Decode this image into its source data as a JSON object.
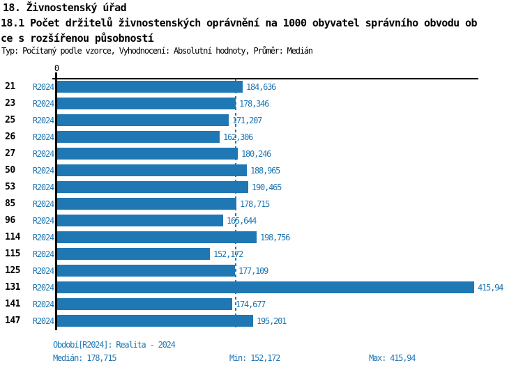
{
  "header": {
    "title": "18. Živnostenský úřad",
    "subtitle_line1": "18.1 Počet držitelů živnostenských oprávnění na 1000 obyvatel správního obvodu ob",
    "subtitle_line2": "ce s rozšířenou působností",
    "meta": "Typ: Počítaný podle vzorce, Vyhodnocení: Absolutní hodnoty, Průměr: Medián"
  },
  "chart_data": {
    "type": "bar",
    "orientation": "horizontal",
    "title": "Počet držitelů živnostenských oprávnění na 1000 obyvatel správního obvodu obce s rozšířenou působností",
    "xlabel": "",
    "ylabel": "",
    "axis": {
      "zero_label": "0",
      "x_min": 0,
      "x_max": 420.7,
      "grid": false
    },
    "median_value": 178.715,
    "period_label": "R2024",
    "categories": [
      "21",
      "23",
      "25",
      "26",
      "27",
      "50",
      "53",
      "85",
      "96",
      "114",
      "115",
      "125",
      "131",
      "141",
      "147"
    ],
    "series": [
      {
        "name": "R2024 (Realita - 2024)",
        "values": [
          184.636,
          178.346,
          171.207,
          162.306,
          180.246,
          188.965,
          190.465,
          178.715,
          165.644,
          198.756,
          152.172,
          177.109,
          415.94,
          174.677,
          195.201
        ]
      }
    ],
    "rows": [
      {
        "id": "21",
        "period": "R2024",
        "value": 184.636,
        "label": "184,636"
      },
      {
        "id": "23",
        "period": "R2024",
        "value": 178.346,
        "label": "178,346"
      },
      {
        "id": "25",
        "period": "R2024",
        "value": 171.207,
        "label": "171,207"
      },
      {
        "id": "26",
        "period": "R2024",
        "value": 162.306,
        "label": "162,306"
      },
      {
        "id": "27",
        "period": "R2024",
        "value": 180.246,
        "label": "180,246"
      },
      {
        "id": "50",
        "period": "R2024",
        "value": 188.965,
        "label": "188,965"
      },
      {
        "id": "53",
        "period": "R2024",
        "value": 190.465,
        "label": "190,465"
      },
      {
        "id": "85",
        "period": "R2024",
        "value": 178.715,
        "label": "178,715"
      },
      {
        "id": "96",
        "period": "R2024",
        "value": 165.644,
        "label": "165,644"
      },
      {
        "id": "114",
        "period": "R2024",
        "value": 198.756,
        "label": "198,756"
      },
      {
        "id": "115",
        "period": "R2024",
        "value": 152.172,
        "label": "152,172"
      },
      {
        "id": "125",
        "period": "R2024",
        "value": 177.109,
        "label": "177,109"
      },
      {
        "id": "131",
        "period": "R2024",
        "value": 415.94,
        "label": "415,94"
      },
      {
        "id": "141",
        "period": "R2024",
        "value": 174.677,
        "label": "174,677"
      },
      {
        "id": "147",
        "period": "R2024",
        "value": 195.201,
        "label": "195,201"
      }
    ],
    "colors": {
      "bar": "#1f77b4",
      "text_blue": "#1f77b4",
      "axis": "#000000",
      "background": "#ffffff"
    },
    "legend_position": "bottom"
  },
  "footer": {
    "period_legend": "Období[R2024]: Realita - 2024",
    "median_text": "Medián: 178,715",
    "min_text": "Min: 152,172",
    "max_text": "Max: 415,94"
  }
}
